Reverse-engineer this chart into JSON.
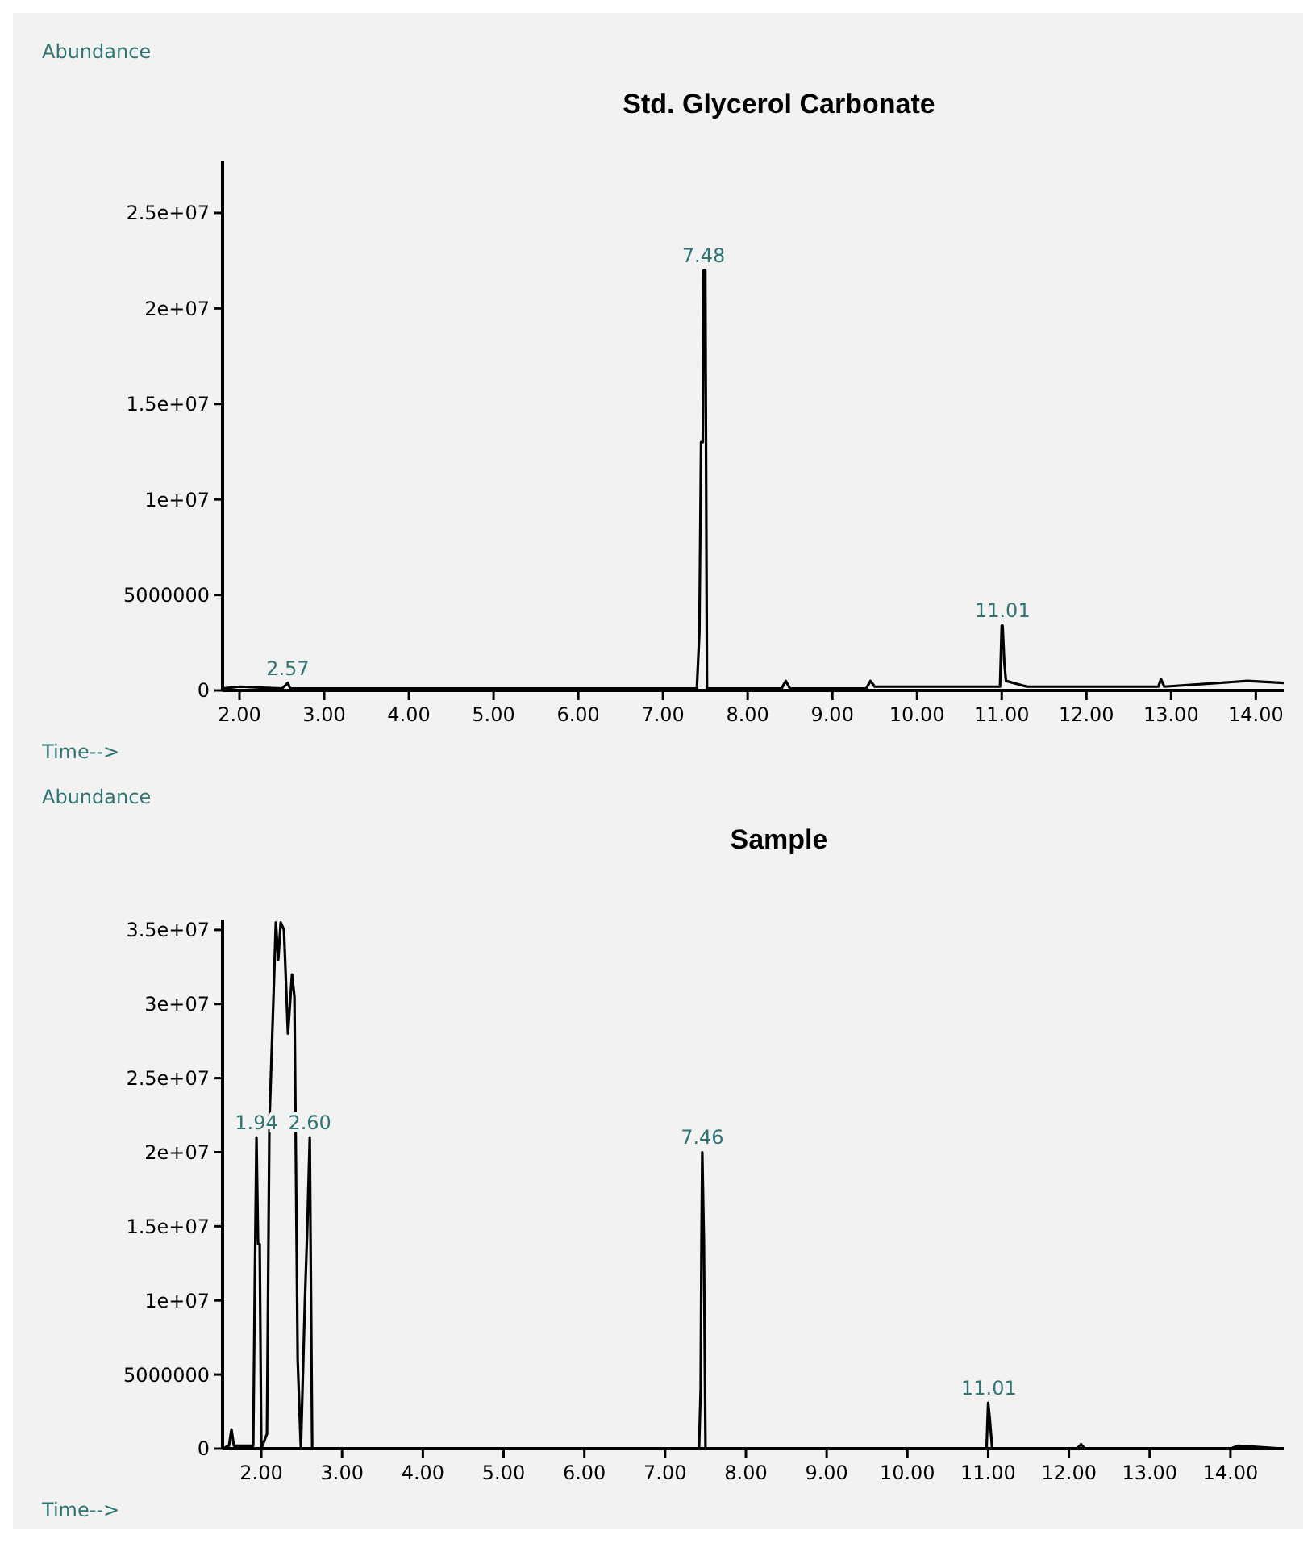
{
  "chart_data": [
    {
      "type": "line",
      "title": "Std. Glycerol Carbonate",
      "xlabel": "Time-->",
      "ylabel": "Abundance",
      "marker": "none",
      "line_style": "solid",
      "xlim": [
        1.8,
        14.33
      ],
      "ylim": [
        0,
        27700000
      ],
      "xticks": [
        {
          "value": 2,
          "label": "2.00"
        },
        {
          "value": 3,
          "label": "3.00"
        },
        {
          "value": 4,
          "label": "4.00"
        },
        {
          "value": 5,
          "label": "5.00"
        },
        {
          "value": 6,
          "label": "6.00"
        },
        {
          "value": 7,
          "label": "7.00"
        },
        {
          "value": 8,
          "label": "8.00"
        },
        {
          "value": 9,
          "label": "9.00"
        },
        {
          "value": 10,
          "label": "10.00"
        },
        {
          "value": 11,
          "label": "11.00"
        },
        {
          "value": 12,
          "label": "12.00"
        },
        {
          "value": 13,
          "label": "13.00"
        },
        {
          "value": 14,
          "label": "14.00"
        }
      ],
      "yticks": [
        {
          "value": 0,
          "label": "0"
        },
        {
          "value": 5000000,
          "label": "5000000"
        },
        {
          "value": 10000000,
          "label": "1e+07"
        },
        {
          "value": 15000000,
          "label": "1.5e+07"
        },
        {
          "value": 20000000,
          "label": "2e+07"
        },
        {
          "value": 25000000,
          "label": "2.5e+07"
        }
      ],
      "series": [
        {
          "color": "#000000",
          "x": [
            1.8,
            2.0,
            2.5,
            2.55,
            2.57,
            2.6,
            7.4,
            7.43,
            7.45,
            7.47,
            7.48,
            7.5,
            7.52,
            8.4,
            8.45,
            8.5,
            9.4,
            9.45,
            9.5,
            10.98,
            11.0,
            11.01,
            11.03,
            11.05,
            11.3,
            12.85,
            12.88,
            12.92,
            13.9,
            14.33
          ],
          "values": [
            100000,
            200000,
            100000,
            300000,
            400000,
            100000,
            100000,
            3000000,
            13000000,
            13000000,
            22000000,
            22000000,
            100000,
            100000,
            500000,
            100000,
            100000,
            500000,
            200000,
            200000,
            3400000,
            3400000,
            1500000,
            500000,
            200000,
            200000,
            600000,
            200000,
            500000,
            400000
          ]
        }
      ],
      "annotations": [
        {
          "text": "2.57",
          "x": 2.57,
          "y": 400000
        },
        {
          "text": "7.48",
          "x": 7.48,
          "y": 22000000
        },
        {
          "text": "11.01",
          "x": 11.01,
          "y": 3400000
        }
      ]
    },
    {
      "type": "line",
      "title": "Sample",
      "xlabel": "Time-->",
      "ylabel": "Abundance",
      "marker": "none",
      "line_style": "solid",
      "xlim": [
        1.52,
        14.66
      ],
      "ylim": [
        0,
        35700000
      ],
      "xticks": [
        {
          "value": 2,
          "label": "2.00"
        },
        {
          "value": 3,
          "label": "3.00"
        },
        {
          "value": 4,
          "label": "4.00"
        },
        {
          "value": 5,
          "label": "5.00"
        },
        {
          "value": 6,
          "label": "6.00"
        },
        {
          "value": 7,
          "label": "7.00"
        },
        {
          "value": 8,
          "label": "8.00"
        },
        {
          "value": 9,
          "label": "9.00"
        },
        {
          "value": 10,
          "label": "10.00"
        },
        {
          "value": 11,
          "label": "11.00"
        },
        {
          "value": 12,
          "label": "12.00"
        },
        {
          "value": 13,
          "label": "13.00"
        },
        {
          "value": 14,
          "label": "14.00"
        }
      ],
      "yticks": [
        {
          "value": 0,
          "label": "0"
        },
        {
          "value": 5000000,
          "label": "5000000"
        },
        {
          "value": 10000000,
          "label": "1e+07"
        },
        {
          "value": 15000000,
          "label": "1.5e+07"
        },
        {
          "value": 20000000,
          "label": "2e+07"
        },
        {
          "value": 25000000,
          "label": "2.5e+07"
        },
        {
          "value": 30000000,
          "label": "3e+07"
        },
        {
          "value": 35000000,
          "label": "3.5e+07"
        }
      ],
      "series": [
        {
          "color": "#000000",
          "x": [
            1.52,
            1.6,
            1.63,
            1.66,
            1.9,
            1.92,
            1.94,
            1.96,
            1.98,
            2.0,
            2.07,
            2.1,
            2.13,
            2.18,
            2.21,
            2.24,
            2.28,
            2.33,
            2.38,
            2.41,
            2.45,
            2.49,
            2.54,
            2.57,
            2.6,
            2.63,
            7.42,
            7.44,
            7.45,
            7.46,
            7.48,
            7.5,
            10.98,
            11.0,
            11.02,
            11.05,
            12.1,
            12.15,
            12.2,
            14.0,
            14.1,
            14.66
          ],
          "values": [
            0,
            200000,
            1300000,
            200000,
            200000,
            11500000,
            21000000,
            13800000,
            13800000,
            0,
            1000000,
            22000000,
            27000000,
            35500000,
            33000000,
            35500000,
            35000000,
            28000000,
            32000000,
            30500000,
            6000000,
            0,
            10000000,
            15000000,
            21000000,
            0,
            0,
            4000000,
            14000000,
            20000000,
            14000000,
            0,
            0,
            3100000,
            2000000,
            0,
            0,
            300000,
            0,
            0,
            200000,
            0
          ]
        }
      ],
      "annotations": [
        {
          "text": "1.94",
          "x": 1.94,
          "y": 21000000
        },
        {
          "text": "2.60",
          "x": 2.6,
          "y": 21000000
        },
        {
          "text": "7.46",
          "x": 7.46,
          "y": 20000000
        },
        {
          "text": "11.01",
          "x": 11.01,
          "y": 3100000
        }
      ]
    }
  ]
}
